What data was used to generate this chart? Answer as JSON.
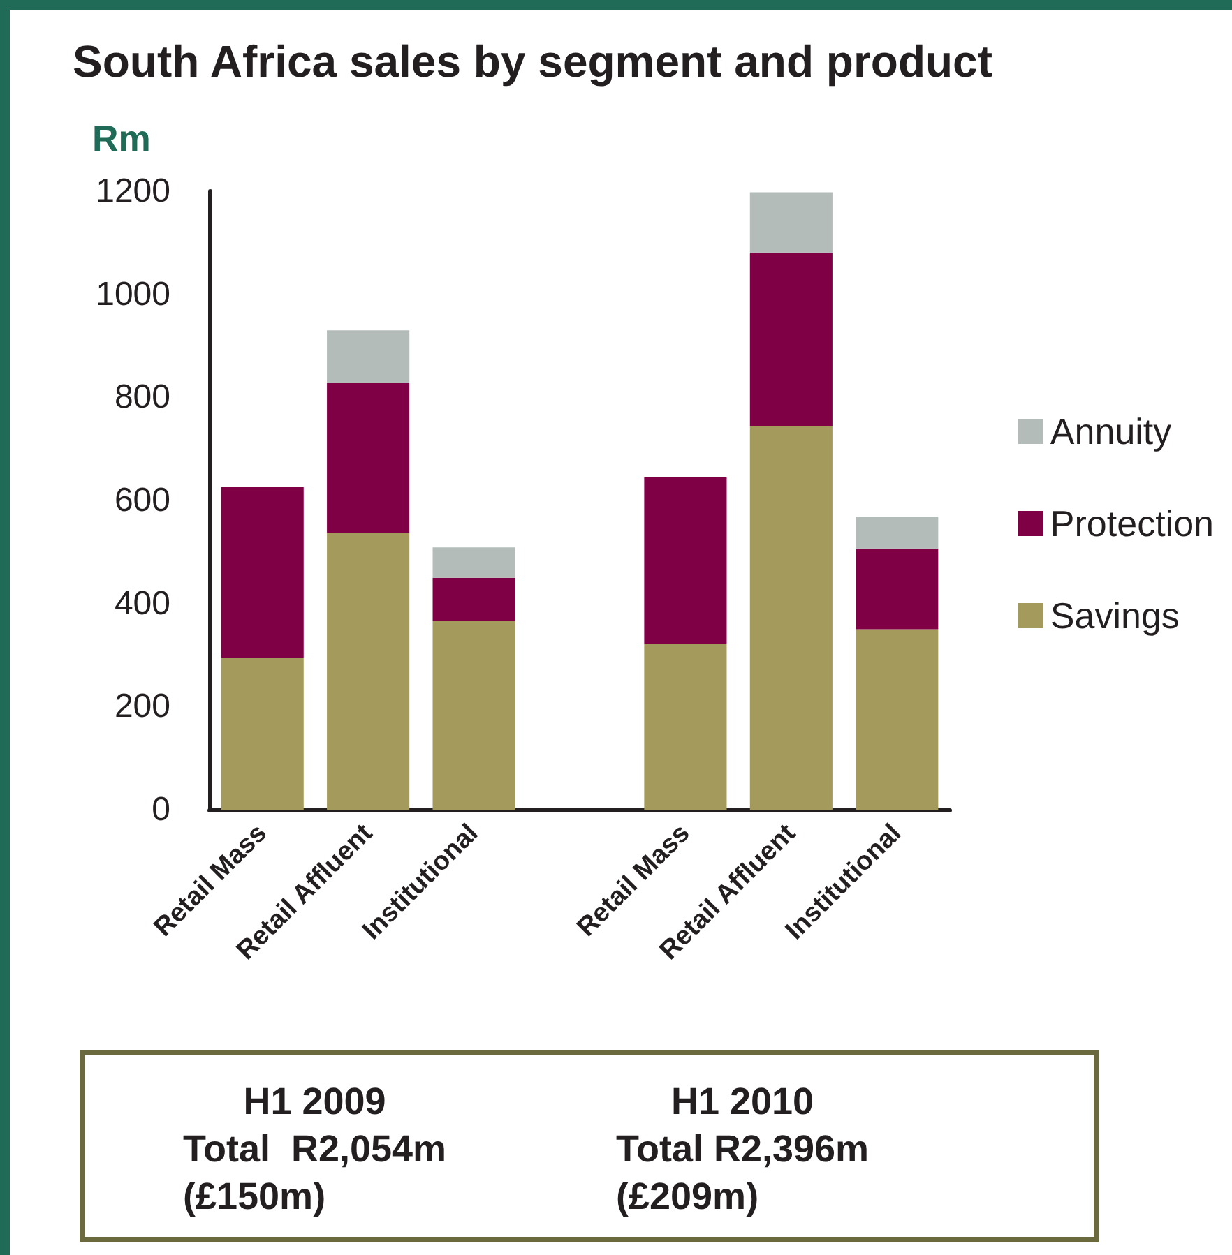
{
  "chart_data": {
    "type": "bar",
    "title": "South Africa sales by segment and product",
    "ylabel": "Rm",
    "categories": [
      "Retail Mass",
      "Retail Affluent",
      "Institutional",
      null,
      "Retail Mass",
      "Retail Affluent",
      "Institutional"
    ],
    "series": [
      {
        "name": "Savings",
        "color": "#a39a5c",
        "values": [
          295,
          537,
          366,
          null,
          322,
          745,
          350
        ]
      },
      {
        "name": "Protection",
        "color": "#800046",
        "values": [
          331,
          292,
          84,
          null,
          323,
          336,
          157
        ]
      },
      {
        "name": "Annuity",
        "color": "#b3bcb9",
        "values": [
          null,
          101,
          59,
          null,
          null,
          117,
          62
        ]
      }
    ],
    "stacked": true,
    "ylim": [
      0,
      1200
    ],
    "yticks": [
      0,
      200,
      400,
      600,
      800,
      1000,
      1200
    ],
    "grid": false,
    "legend": "right",
    "annotations": [
      "H1 2009\nTotal  R2,054m\n(£150m)",
      "H1 2010\nTotal R2,396m\n(£209m)"
    ]
  }
}
